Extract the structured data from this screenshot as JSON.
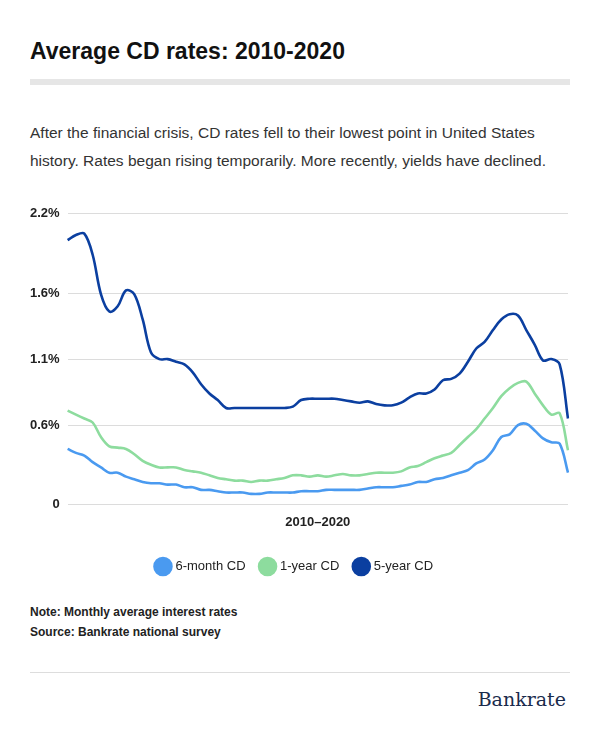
{
  "chart_data": {
    "type": "line",
    "title": "Average CD rates: 2010-2020",
    "subtitle": "After the financial crisis, CD rates fell to their lowest point in United States history. Rates began rising temporarily. More recently, yields have declined.",
    "x_label": "2010–2020",
    "note": "Note: Monthly average interest rates",
    "source": "Source: Bankrate national survey",
    "logo": "Bankrate",
    "categories": [
      null,
      null,
      null,
      null,
      null,
      null,
      null,
      null,
      null,
      null,
      null,
      null,
      null,
      null,
      null,
      null,
      null,
      null,
      null,
      null,
      null,
      null,
      null,
      null,
      null,
      null,
      null,
      null,
      null,
      null,
      null,
      null,
      null,
      null,
      null,
      null,
      null,
      null,
      null,
      null,
      null,
      null,
      null,
      null,
      null,
      null,
      null,
      null,
      null,
      null,
      null,
      null,
      null,
      null,
      null,
      null,
      null,
      null,
      null,
      null,
      null
    ],
    "series": [
      {
        "name": "6-month CD",
        "color": "#4a9af0",
        "values": [
          0.42,
          0.39,
          0.37,
          0.32,
          0.28,
          0.24,
          0.24,
          0.21,
          0.19,
          0.17,
          0.16,
          0.16,
          0.15,
          0.15,
          0.13,
          0.13,
          0.11,
          0.11,
          0.1,
          0.09,
          0.09,
          0.09,
          0.08,
          0.08,
          0.09,
          0.09,
          0.09,
          0.09,
          0.1,
          0.1,
          0.1,
          0.11,
          0.11,
          0.11,
          0.11,
          0.11,
          0.12,
          0.13,
          0.13,
          0.13,
          0.14,
          0.15,
          0.17,
          0.17,
          0.19,
          0.2,
          0.22,
          0.24,
          0.26,
          0.31,
          0.34,
          0.41,
          0.51,
          0.53,
          0.6,
          0.61,
          0.56,
          0.5,
          0.47,
          0.46,
          0.24
        ]
      },
      {
        "name": "1-year CD",
        "color": "#8ddc9e",
        "values": [
          0.71,
          0.68,
          0.65,
          0.62,
          0.51,
          0.44,
          0.43,
          0.42,
          0.38,
          0.33,
          0.3,
          0.28,
          0.28,
          0.28,
          0.26,
          0.25,
          0.24,
          0.22,
          0.2,
          0.19,
          0.18,
          0.18,
          0.17,
          0.18,
          0.18,
          0.19,
          0.2,
          0.22,
          0.22,
          0.21,
          0.22,
          0.21,
          0.22,
          0.23,
          0.22,
          0.22,
          0.23,
          0.24,
          0.24,
          0.24,
          0.25,
          0.28,
          0.29,
          0.32,
          0.35,
          0.37,
          0.39,
          0.45,
          0.51,
          0.57,
          0.65,
          0.73,
          0.82,
          0.88,
          0.92,
          0.93,
          0.84,
          0.75,
          0.68,
          0.69,
          0.41
        ]
      },
      {
        "name": "5-year CD",
        "color": "#0b3fa0",
        "values": [
          2.0,
          2.04,
          2.05,
          1.89,
          1.59,
          1.46,
          1.5,
          1.62,
          1.59,
          1.4,
          1.15,
          1.1,
          1.1,
          1.08,
          1.06,
          1.0,
          0.91,
          0.84,
          0.79,
          0.73,
          0.73,
          0.73,
          0.73,
          0.73,
          0.73,
          0.73,
          0.73,
          0.74,
          0.79,
          0.8,
          0.8,
          0.8,
          0.8,
          0.79,
          0.78,
          0.77,
          0.78,
          0.76,
          0.75,
          0.75,
          0.77,
          0.81,
          0.84,
          0.84,
          0.87,
          0.94,
          0.95,
          0.99,
          1.08,
          1.18,
          1.23,
          1.32,
          1.4,
          1.44,
          1.43,
          1.32,
          1.21,
          1.09,
          1.1,
          1.06,
          0.65
        ]
      }
    ],
    "ylim": [
      0,
      2.2
    ],
    "yticks": [
      0,
      {
        "value": 0.6,
        "label": "0.6%"
      },
      {
        "value": 1.1,
        "label": "1.1%"
      },
      {
        "value": 1.6,
        "label": "1.6%"
      },
      {
        "value": 2.2,
        "label": "2.2%"
      }
    ],
    "grid": true,
    "legend": "bottom",
    "tick_labels": "y"
  }
}
